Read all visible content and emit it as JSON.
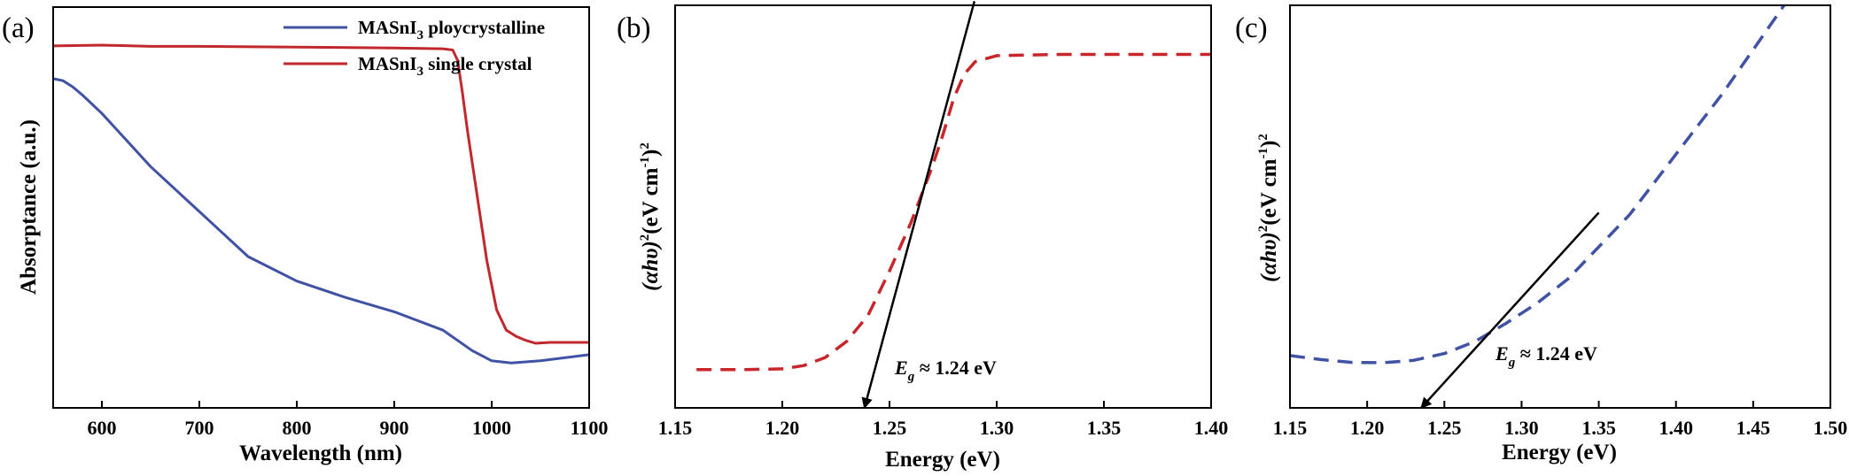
{
  "chart_data": [
    {
      "panel_label": "(a)",
      "type": "line",
      "xlabel": "Wavelength (nm)",
      "ylabel": "Absorptance (a.u.)",
      "xlim": [
        550,
        1100
      ],
      "ylim": [
        0,
        1
      ],
      "x_ticks": [
        600,
        700,
        800,
        900,
        1000,
        1100
      ],
      "x_tick_labels": [
        "600",
        "700",
        "800",
        "900",
        "1000",
        "1100"
      ],
      "y_ticks_labeled": false,
      "legend_position": "top-right",
      "series": [
        {
          "name_base": "MASnI",
          "name_sub": "3",
          "name_rest": " ploycrystalline",
          "color": "#3f52a3",
          "style": "solid",
          "x": [
            550,
            560,
            570,
            580,
            600,
            650,
            700,
            750,
            800,
            850,
            900,
            950,
            980,
            1000,
            1020,
            1050,
            1100
          ],
          "y": [
            0.805,
            0.8,
            0.785,
            0.765,
            0.72,
            0.59,
            0.48,
            0.37,
            0.31,
            0.27,
            0.235,
            0.19,
            0.14,
            0.115,
            0.11,
            0.115,
            0.13
          ]
        },
        {
          "name_base": "MASnI",
          "name_sub": "3",
          "name_rest": " single crystal",
          "color": "#c0282d",
          "style": "solid",
          "x": [
            550,
            600,
            650,
            700,
            800,
            900,
            950,
            960,
            965,
            970,
            975,
            985,
            995,
            1005,
            1015,
            1025,
            1035,
            1045,
            1060,
            1080,
            1100
          ],
          "y": [
            0.885,
            0.887,
            0.884,
            0.884,
            0.882,
            0.88,
            0.878,
            0.875,
            0.85,
            0.77,
            0.68,
            0.52,
            0.36,
            0.24,
            0.19,
            0.175,
            0.165,
            0.158,
            0.16,
            0.16,
            0.16
          ]
        }
      ]
    },
    {
      "panel_label": "(b)",
      "type": "line",
      "xlabel": "Energy (eV)",
      "ylabel_base": "(αhυ)",
      "ylabel_sup1": "2",
      "ylabel_mid": "(eV cm",
      "ylabel_sup2": "-1",
      "ylabel_end": ")",
      "ylabel_sup3": "2",
      "xlim": [
        1.15,
        1.4
      ],
      "ylim": [
        0,
        1
      ],
      "x_ticks": [
        1.15,
        1.2,
        1.25,
        1.3,
        1.35,
        1.4
      ],
      "x_tick_labels": [
        "1.15",
        "1.20",
        "1.25",
        "1.30",
        "1.35",
        "1.40"
      ],
      "y_ticks_labeled": false,
      "annotation_base": "E",
      "annotation_sub": "g",
      "annotation_rest": " ≈ 1.24 eV",
      "series": [
        {
          "color": "#c8262b",
          "style": "dashed",
          "x": [
            1.16,
            1.18,
            1.2,
            1.21,
            1.22,
            1.23,
            1.24,
            1.25,
            1.26,
            1.27,
            1.275,
            1.28,
            1.285,
            1.29,
            1.3,
            1.33,
            1.36,
            1.4
          ],
          "y": [
            0.095,
            0.095,
            0.097,
            0.105,
            0.125,
            0.165,
            0.23,
            0.34,
            0.46,
            0.6,
            0.68,
            0.77,
            0.83,
            0.86,
            0.875,
            0.878,
            0.878,
            0.878
          ]
        }
      ],
      "tangent": {
        "x": [
          1.2896,
          1.2383
        ],
        "y": [
          1.01,
          0.0
        ]
      }
    },
    {
      "panel_label": "(c)",
      "type": "line",
      "xlabel": "Energy (eV)",
      "ylabel_base": "(αhυ)",
      "ylabel_sup1": "2",
      "ylabel_mid": "(eV cm",
      "ylabel_sup2": "-1",
      "ylabel_end": ")",
      "ylabel_sup3": "2",
      "xlim": [
        1.15,
        1.5
      ],
      "ylim": [
        0,
        1
      ],
      "x_ticks": [
        1.15,
        1.2,
        1.25,
        1.3,
        1.35,
        1.4,
        1.45,
        1.5
      ],
      "x_tick_labels": [
        "1.15",
        "1.20",
        "1.25",
        "1.30",
        "1.35",
        "1.40",
        "1.45",
        "1.50"
      ],
      "y_ticks_labeled": false,
      "annotation_base": "E",
      "annotation_sub": "g",
      "annotation_rest": " ≈ 1.24 eV",
      "series": [
        {
          "color": "#3f52a3",
          "style": "dashed",
          "x": [
            1.15,
            1.17,
            1.19,
            1.21,
            1.23,
            1.25,
            1.27,
            1.29,
            1.31,
            1.33,
            1.35,
            1.37,
            1.39,
            1.41,
            1.43,
            1.45,
            1.47
          ],
          "y": [
            0.13,
            0.12,
            0.113,
            0.112,
            0.118,
            0.135,
            0.165,
            0.21,
            0.26,
            0.32,
            0.4,
            0.48,
            0.58,
            0.68,
            0.78,
            0.89,
            1.0
          ]
        }
      ],
      "tangent": {
        "x": [
          1.35,
          1.235
        ],
        "y": [
          0.485,
          0.0
        ]
      }
    }
  ]
}
